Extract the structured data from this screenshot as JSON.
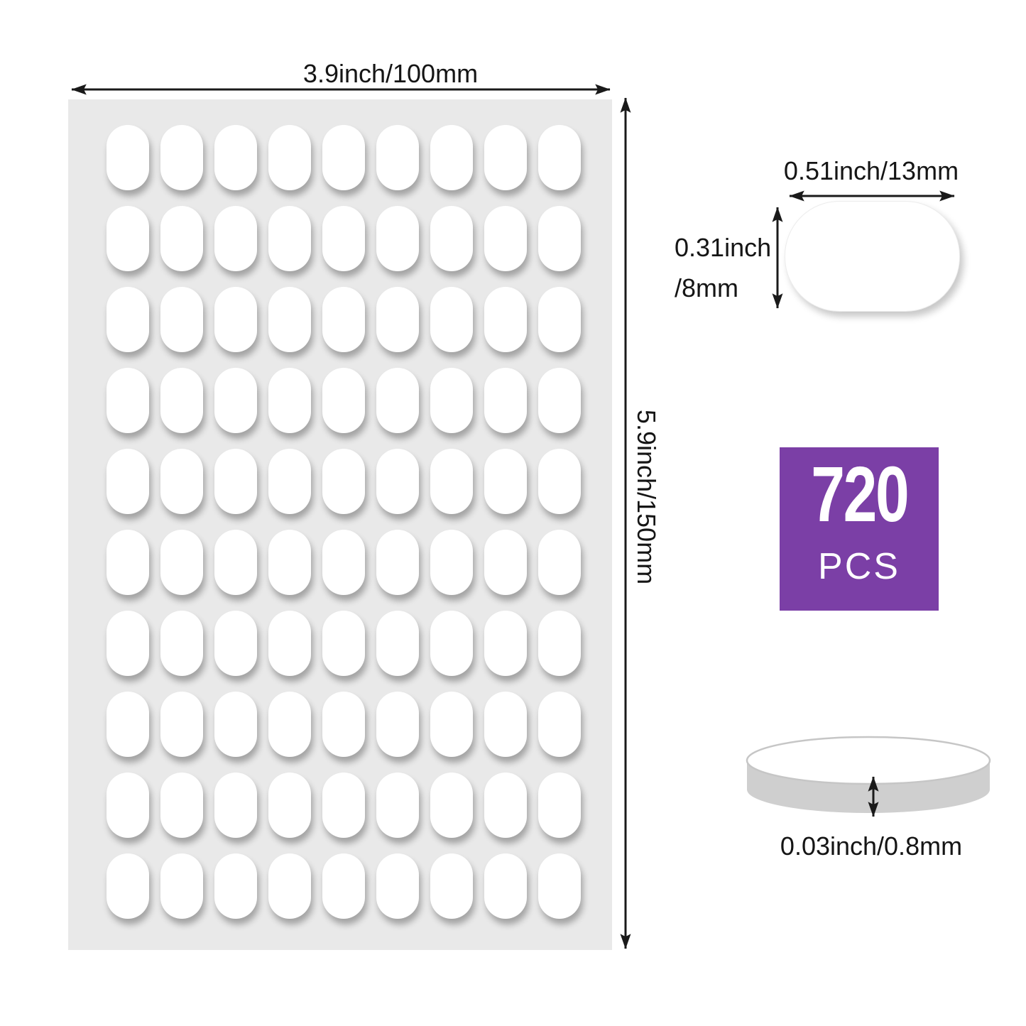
{
  "sheet": {
    "rows": 10,
    "columns": 9,
    "stickers_visible": 90,
    "background_color": "#e9e9e9",
    "sticker_color": "#ffffff"
  },
  "dimension_labels": {
    "sheet_width": "3.9inch/100mm",
    "sheet_height": "5.9inch/150mm",
    "sticker_width": "0.51inch/13mm",
    "sticker_height_line1": "0.31inch",
    "sticker_height_line2": "/8mm",
    "sticker_thickness": "0.03inch/0.8mm"
  },
  "badge": {
    "count": "720",
    "unit": "PCS",
    "background_color": "#7b3fa6",
    "text_color": "#ffffff"
  },
  "icons": {
    "sheet_width_arrow": "double-headed-horizontal-arrow",
    "sheet_height_arrow": "double-headed-vertical-arrow",
    "sticker_width_arrow": "double-headed-horizontal-arrow",
    "sticker_height_arrow": "double-headed-vertical-arrow",
    "sticker_thickness_arrow": "double-headed-vertical-arrow"
  },
  "colors": {
    "page_background": "#ffffff",
    "arrow": "#1a1a1a",
    "label_text": "#151515",
    "disc_side": "#cfcfcf",
    "disc_outline": "#c6c6c6"
  }
}
